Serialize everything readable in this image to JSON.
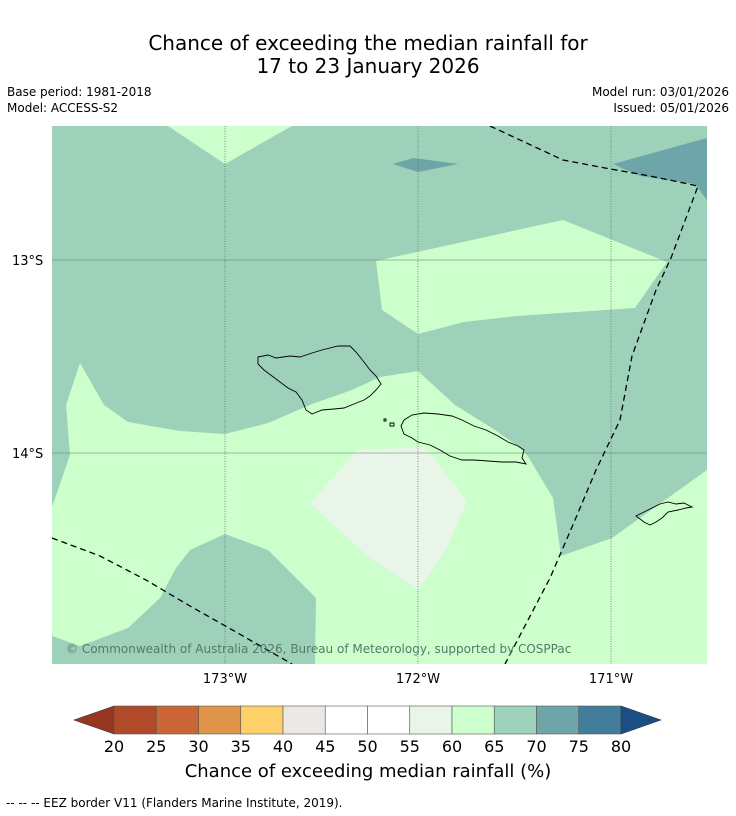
{
  "title_line1": "Chance of exceeding the median rainfall for",
  "title_line2": "17 to 23 January 2026",
  "base_period": "Base period: 1981-2018",
  "model": "Model: ACCESS-S2",
  "model_run": "Model run: 03/01/2026",
  "issued": "Issued: 05/01/2026",
  "lat_labels": [
    "13°S",
    "14°S"
  ],
  "lon_labels": [
    "173°W",
    "172°W",
    "171°W"
  ],
  "copyright": "© Commonwealth of Australia 2026, Bureau of Meteorology, supported by COSPPac",
  "colorbar": {
    "ticks": [
      "20",
      "25",
      "30",
      "35",
      "40",
      "45",
      "50",
      "55",
      "60",
      "65",
      "70",
      "75",
      "80"
    ],
    "colors": [
      "#b04a28",
      "#cc6535",
      "#e09448",
      "#fdd06a",
      "#ece8e4",
      "#ffffff",
      "#ffffff",
      "#eaf5ea",
      "#ccffcc",
      "#9dd1ba",
      "#6ea5a8",
      "#427e9c"
    ],
    "under_color": "#98371f",
    "over_color": "#1a4f85",
    "label": "Chance of exceeding median rainfall (%)"
  },
  "region_colors": {
    "c60_65": "#ccffcc",
    "c65_70": "#9dd1ba",
    "c70_75": "#6ea5a8",
    "c55_60": "#eaf5ea"
  },
  "footer": "-- -- -- EEZ border V11 (Flanders Marine Institute, 2019)."
}
